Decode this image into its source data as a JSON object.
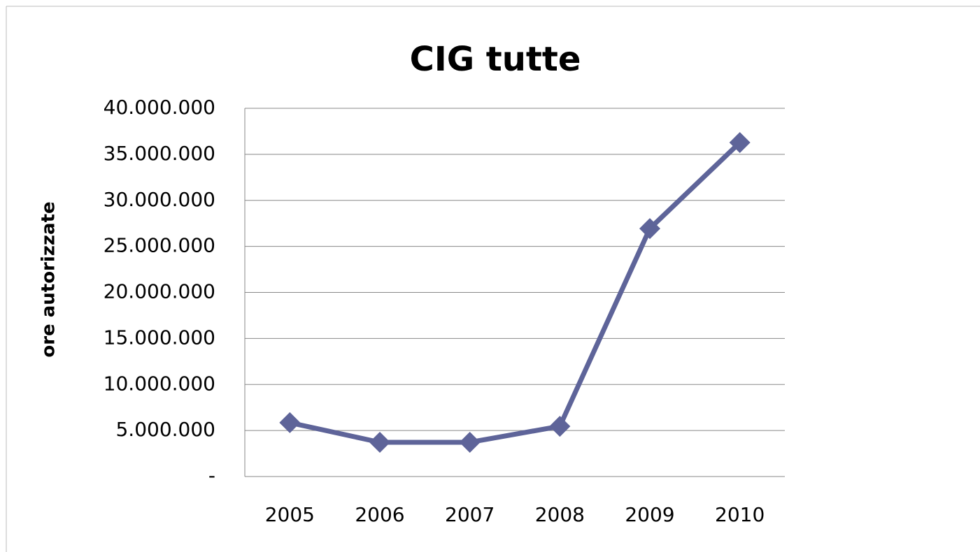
{
  "chart_data": {
    "type": "line",
    "title": "CIG tutte",
    "y_label": "ore autorizzate",
    "categories": [
      "2005",
      "2006",
      "2007",
      "2008",
      "2009",
      "2010"
    ],
    "series": [
      {
        "name": "CIG tutte",
        "color": "#5e6499",
        "values": [
          5850000,
          3720000,
          3720000,
          5460000,
          26940000,
          36280000
        ]
      }
    ],
    "ylim": [
      0,
      40000000
    ],
    "yticks": [
      {
        "value": 0,
        "label": "-"
      },
      {
        "value": 5000000,
        "label": "5.000.000"
      },
      {
        "value": 10000000,
        "label": "10.000.000"
      },
      {
        "value": 15000000,
        "label": "15.000.000"
      },
      {
        "value": 20000000,
        "label": "20.000.000"
      },
      {
        "value": 25000000,
        "label": "25.000.000"
      },
      {
        "value": 30000000,
        "label": "30.000.000"
      },
      {
        "value": 35000000,
        "label": "35.000.000"
      },
      {
        "value": 40000000,
        "label": "40.000.000"
      }
    ],
    "grid": true
  }
}
